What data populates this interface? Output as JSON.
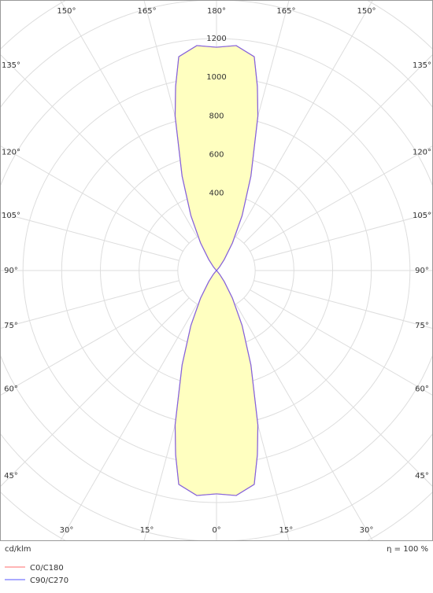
{
  "chart_data": {
    "type": "polar",
    "unit_label": "cd/klm",
    "efficiency_label": "η = 100 %",
    "rlim": [
      0,
      1200
    ],
    "rticks": [
      400,
      600,
      800,
      1000,
      1200
    ],
    "angle_ticks": [
      {
        "value": 0,
        "label": "0°"
      },
      {
        "value": 15,
        "label": "15°"
      },
      {
        "value": 30,
        "label": "30°"
      },
      {
        "value": 45,
        "label": "45°"
      },
      {
        "value": 60,
        "label": "60°"
      },
      {
        "value": 75,
        "label": "75°"
      },
      {
        "value": 90,
        "label": "90°"
      },
      {
        "value": 105,
        "label": "105°"
      },
      {
        "value": 120,
        "label": "120°"
      },
      {
        "value": 135,
        "label": "135°"
      },
      {
        "value": 150,
        "label": "150°"
      },
      {
        "value": 165,
        "label": "165°"
      },
      {
        "value": 180,
        "label": "180°"
      }
    ],
    "series": [
      {
        "name": "C0/C180",
        "color": "#ff6b6b",
        "x": [
          0,
          5,
          10,
          12.5,
          15,
          20,
          25,
          30,
          35,
          40,
          45,
          50,
          60,
          70,
          80,
          90,
          100,
          110,
          120,
          130,
          135,
          140,
          145,
          150,
          155,
          160,
          165,
          167.5,
          170,
          175,
          180
        ],
        "values": [
          1155,
          1168,
          1123,
          976,
          826,
          520,
          313,
          165,
          70,
          25,
          5,
          0,
          0,
          0,
          0,
          0,
          0,
          0,
          0,
          0,
          5,
          25,
          70,
          165,
          313,
          520,
          826,
          976,
          1123,
          1168,
          1155
        ]
      },
      {
        "name": "C90/C270",
        "color": "#5555ff",
        "x": [
          0,
          5,
          10,
          12.5,
          15,
          20,
          25,
          30,
          35,
          40,
          45,
          50,
          60,
          70,
          80,
          90,
          100,
          110,
          120,
          130,
          135,
          140,
          145,
          150,
          155,
          160,
          165,
          167.5,
          170,
          175,
          180
        ],
        "values": [
          1155,
          1168,
          1123,
          976,
          826,
          520,
          313,
          165,
          70,
          25,
          5,
          0,
          0,
          0,
          0,
          0,
          0,
          0,
          0,
          0,
          5,
          25,
          70,
          165,
          313,
          520,
          826,
          976,
          1123,
          1168,
          1155
        ]
      }
    ]
  }
}
